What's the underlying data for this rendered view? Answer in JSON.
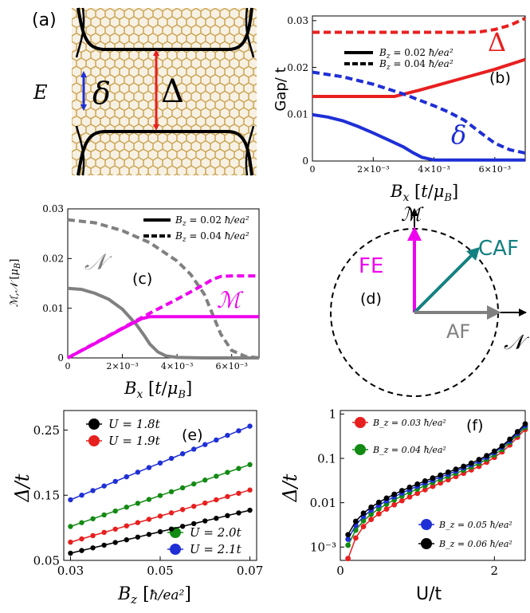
{
  "panels": {
    "a": {
      "label": "(a)",
      "energy_label": "E",
      "delta_small": "δ",
      "delta_big": "Δ",
      "colors": {
        "small_gap": "#1f2fd6",
        "big_gap": "#e81f1f",
        "bands": "#000000",
        "lattice": "#c9a04a"
      }
    },
    "b": {
      "label": "(b)",
      "delta_big": "Δ",
      "delta_small": "δ"
    },
    "c": {
      "label": "(c)",
      "N": "𝒩",
      "M": "ℳ"
    },
    "d": {
      "label": "(d)",
      "M_axis": "ℳ",
      "N_axis": "𝒩",
      "FE": "FE",
      "CAF": "CAF",
      "AF": "AF",
      "colors": {
        "FE": "#ee00ee",
        "CAF": "#138080",
        "AF": "#808080"
      }
    },
    "e": {
      "label": "(e)"
    },
    "f": {
      "label": "(f)"
    }
  },
  "chart_data": [
    {
      "id": "b",
      "type": "line",
      "ylabel": "Gap/ t",
      "xlabel": "B_x [t/μ_B]",
      "xlim": [
        0,
        0.007
      ],
      "ylim": [
        0,
        0.031
      ],
      "xticks": [
        "0",
        "2×10⁻³",
        "4×10⁻³",
        "6×10⁻³"
      ],
      "xtick_values": [
        0,
        0.002,
        0.004,
        0.006
      ],
      "yticks": [
        "0",
        "0.01",
        "0.02",
        "0.03"
      ],
      "ytick_values": [
        0,
        0.01,
        0.02,
        0.03
      ],
      "legend": [
        {
          "name": "B_z = 0.02 ħ/ea²",
          "style": "solid"
        },
        {
          "name": "B_z = 0.04 ħ/ea²",
          "style": "dashed"
        }
      ],
      "series": [
        {
          "name": "Δ",
          "field": "B_z = 0.02",
          "style": "solid",
          "color": "#e81f1f",
          "x": [
            0,
            0.001,
            0.002,
            0.0027,
            0.0035,
            0.004,
            0.005,
            0.006,
            0.007
          ],
          "y": [
            0.0138,
            0.0138,
            0.0138,
            0.0138,
            0.0151,
            0.016,
            0.0178,
            0.0196,
            0.0217
          ]
        },
        {
          "name": "Δ",
          "field": "B_z = 0.04",
          "style": "dashed",
          "color": "#e81f1f",
          "x": [
            0,
            0.001,
            0.002,
            0.003,
            0.004,
            0.005,
            0.0055,
            0.006,
            0.0065,
            0.007
          ],
          "y": [
            0.0275,
            0.0275,
            0.0275,
            0.0275,
            0.0275,
            0.0275,
            0.0276,
            0.0281,
            0.029,
            0.0305
          ]
        },
        {
          "name": "δ",
          "field": "B_z = 0.02",
          "style": "solid",
          "color": "#1f2fd6",
          "x": [
            0,
            0.0005,
            0.001,
            0.0015,
            0.002,
            0.0025,
            0.003,
            0.0033,
            0.0036,
            0.004,
            0.005,
            0.006,
            0.007
          ],
          "y": [
            0.0099,
            0.0094,
            0.0086,
            0.0074,
            0.006,
            0.0045,
            0.003,
            0.0018,
            0.0008,
            0.0002,
            0.0002,
            0.0002,
            0.0002
          ]
        },
        {
          "name": "δ",
          "field": "B_z = 0.04",
          "style": "dashed",
          "color": "#1f2fd6",
          "x": [
            0,
            0.001,
            0.002,
            0.003,
            0.004,
            0.0045,
            0.005,
            0.0055,
            0.006,
            0.0065,
            0.007
          ],
          "y": [
            0.019,
            0.018,
            0.0164,
            0.0143,
            0.0118,
            0.0104,
            0.0087,
            0.0062,
            0.0038,
            0.0024,
            0.0017
          ]
        }
      ]
    },
    {
      "id": "c",
      "type": "line",
      "ylabel": "ℳ,𝒩 [μ_B]",
      "xlabel": "B_x [t/μ_B]",
      "xlim": [
        0,
        0.007
      ],
      "ylim": [
        0,
        0.03
      ],
      "xticks": [
        "0",
        "2×10⁻³",
        "4×10⁻³",
        "6×10⁻³"
      ],
      "xtick_values": [
        0,
        0.002,
        0.004,
        0.006
      ],
      "yticks": [
        "0",
        "0.01",
        "0.02",
        "0.03"
      ],
      "ytick_values": [
        0,
        0.01,
        0.02,
        0.03
      ],
      "legend": [
        {
          "name": "B_z = 0.02 ħ/ea²",
          "style": "solid"
        },
        {
          "name": "B_z = 0.04 ħ/ea²",
          "style": "dashed"
        }
      ],
      "series": [
        {
          "name": "𝒩",
          "field": "B_z = 0.02",
          "style": "solid",
          "color": "#808080",
          "x": [
            0,
            0.0005,
            0.001,
            0.0015,
            0.002,
            0.0025,
            0.0028,
            0.003,
            0.0033,
            0.0036,
            0.004,
            0.005,
            0.006,
            0.007
          ],
          "y": [
            0.014,
            0.0138,
            0.013,
            0.0118,
            0.0098,
            0.0068,
            0.0045,
            0.0028,
            0.0012,
            0.0004,
            0.0001,
            0,
            0,
            0
          ]
        },
        {
          "name": "𝒩",
          "field": "B_z = 0.04",
          "style": "dashed",
          "color": "#808080",
          "x": [
            0,
            0.001,
            0.002,
            0.003,
            0.004,
            0.0045,
            0.005,
            0.0053,
            0.0056,
            0.006,
            0.0065,
            0.007
          ],
          "y": [
            0.0278,
            0.0272,
            0.0256,
            0.0232,
            0.0195,
            0.0168,
            0.0128,
            0.0088,
            0.0048,
            0.0015,
            0.0003,
            0
          ]
        },
        {
          "name": "ℳ",
          "field": "B_z = 0.02",
          "style": "solid",
          "color": "#ee00ee",
          "x": [
            0,
            0.001,
            0.002,
            0.0027,
            0.003,
            0.0035,
            0.004,
            0.005,
            0.006,
            0.007
          ],
          "y": [
            0,
            0.0029,
            0.0059,
            0.0079,
            0.0083,
            0.0083,
            0.0083,
            0.0083,
            0.0083,
            0.0083
          ]
        },
        {
          "name": "ℳ",
          "field": "B_z = 0.04",
          "style": "dashed",
          "color": "#ee00ee",
          "x": [
            0,
            0.001,
            0.002,
            0.003,
            0.004,
            0.0045,
            0.005,
            0.0053,
            0.0056,
            0.006,
            0.007
          ],
          "y": [
            0,
            0.003,
            0.006,
            0.009,
            0.0118,
            0.0133,
            0.0148,
            0.0158,
            0.0164,
            0.0165,
            0.0165
          ]
        }
      ]
    },
    {
      "id": "e",
      "type": "line",
      "ylabel": "Δ/t",
      "xlabel": "B_z [ħ/ea²]",
      "xlim": [
        0.0285,
        0.0715
      ],
      "ylim": [
        0.05,
        0.28
      ],
      "xticks": [
        "0.03",
        "0.05",
        "0.07"
      ],
      "xtick_values": [
        0.03,
        0.05,
        0.07
      ],
      "yticks": [
        "0.05",
        "0.15",
        "0.25"
      ],
      "ytick_values": [
        0.05,
        0.15,
        0.25
      ],
      "legend_top": [
        {
          "name": "U = 1.8t",
          "color": "#000000"
        },
        {
          "name": "U = 1.9t",
          "color": "#e81f1f"
        }
      ],
      "legend_bottom": [
        {
          "name": "U = 2.0t",
          "color": "#138a13"
        },
        {
          "name": "U = 2.1t",
          "color": "#1f2fd6"
        }
      ],
      "x": [
        0.03,
        0.0325,
        0.035,
        0.0375,
        0.04,
        0.0425,
        0.045,
        0.0475,
        0.05,
        0.0525,
        0.055,
        0.0575,
        0.06,
        0.0625,
        0.065,
        0.0675,
        0.07
      ],
      "series": [
        {
          "name": "U = 2.1t",
          "color": "#1f2fd6",
          "y0": 0.143,
          "y1": 0.256
        },
        {
          "name": "U = 2.0t",
          "color": "#138a13",
          "y0": 0.102,
          "y1": 0.197
        },
        {
          "name": "U = 1.9t",
          "color": "#e81f1f",
          "y0": 0.078,
          "y1": 0.158
        },
        {
          "name": "U = 1.8t",
          "color": "#000000",
          "y0": 0.061,
          "y1": 0.127
        }
      ]
    },
    {
      "id": "f",
      "type": "line",
      "yscale": "log",
      "ylabel": "Δ/t",
      "xlabel": "U/t",
      "xlim": [
        0,
        2.4
      ],
      "ylim": [
        0.0005,
        1.2
      ],
      "xticks": [
        "0",
        "2"
      ],
      "xtick_values": [
        0,
        2
      ],
      "yticks": [
        "10⁻³",
        "0.01",
        "0.1",
        "1"
      ],
      "ytick_values": [
        0.001,
        0.01,
        0.1,
        1
      ],
      "legend_top": [
        {
          "name": "B_z = 0.03 ħ/ea²",
          "color": "#e81f1f"
        },
        {
          "name": "B_z = 0.04 ħ/ea²",
          "color": "#138a13"
        }
      ],
      "legend_bottom": [
        {
          "name": "B_z = 0.05 ħ/ea²",
          "color": "#1f2fd6"
        },
        {
          "name": "B_z = 0.06 ħ/ea²",
          "color": "#000000"
        }
      ],
      "x": [
        0.1,
        0.2,
        0.3,
        0.4,
        0.5,
        0.6,
        0.7,
        0.8,
        0.9,
        1.0,
        1.1,
        1.2,
        1.3,
        1.4,
        1.5,
        1.6,
        1.7,
        1.8,
        1.9,
        2.0,
        2.1,
        2.2,
        2.3,
        2.4
      ],
      "series": [
        {
          "name": "B_z = 0.03",
          "color": "#e81f1f",
          "y": [
            0.00055,
            0.0016,
            0.0029,
            0.0042,
            0.0056,
            0.0072,
            0.009,
            0.0111,
            0.0135,
            0.0163,
            0.0196,
            0.0234,
            0.0279,
            0.033,
            0.039,
            0.046,
            0.055,
            0.066,
            0.082,
            0.105,
            0.14,
            0.2,
            0.3,
            0.45
          ]
        },
        {
          "name": "B_z = 0.04",
          "color": "#138a13",
          "y": [
            0.0011,
            0.0024,
            0.0039,
            0.0055,
            0.0073,
            0.0093,
            0.0116,
            0.0142,
            0.0171,
            0.0204,
            0.0242,
            0.0286,
            0.0336,
            0.039,
            0.046,
            0.054,
            0.064,
            0.077,
            0.095,
            0.12,
            0.16,
            0.23,
            0.34,
            0.5
          ]
        },
        {
          "name": "B_z = 0.05",
          "color": "#1f2fd6",
          "y": [
            0.0015,
            0.0031,
            0.0049,
            0.0068,
            0.0088,
            0.011,
            0.0136,
            0.0165,
            0.0198,
            0.0235,
            0.0277,
            0.0325,
            0.038,
            0.044,
            0.052,
            0.061,
            0.072,
            0.086,
            0.106,
            0.135,
            0.18,
            0.25,
            0.37,
            0.55
          ]
        },
        {
          "name": "B_z = 0.06",
          "color": "#000000",
          "y": [
            0.0019,
            0.0038,
            0.0058,
            0.0079,
            0.0102,
            0.0127,
            0.0155,
            0.0187,
            0.0223,
            0.0263,
            0.0309,
            0.036,
            0.042,
            0.049,
            0.057,
            0.066,
            0.078,
            0.094,
            0.115,
            0.145,
            0.19,
            0.27,
            0.4,
            0.6
          ]
        }
      ]
    }
  ]
}
